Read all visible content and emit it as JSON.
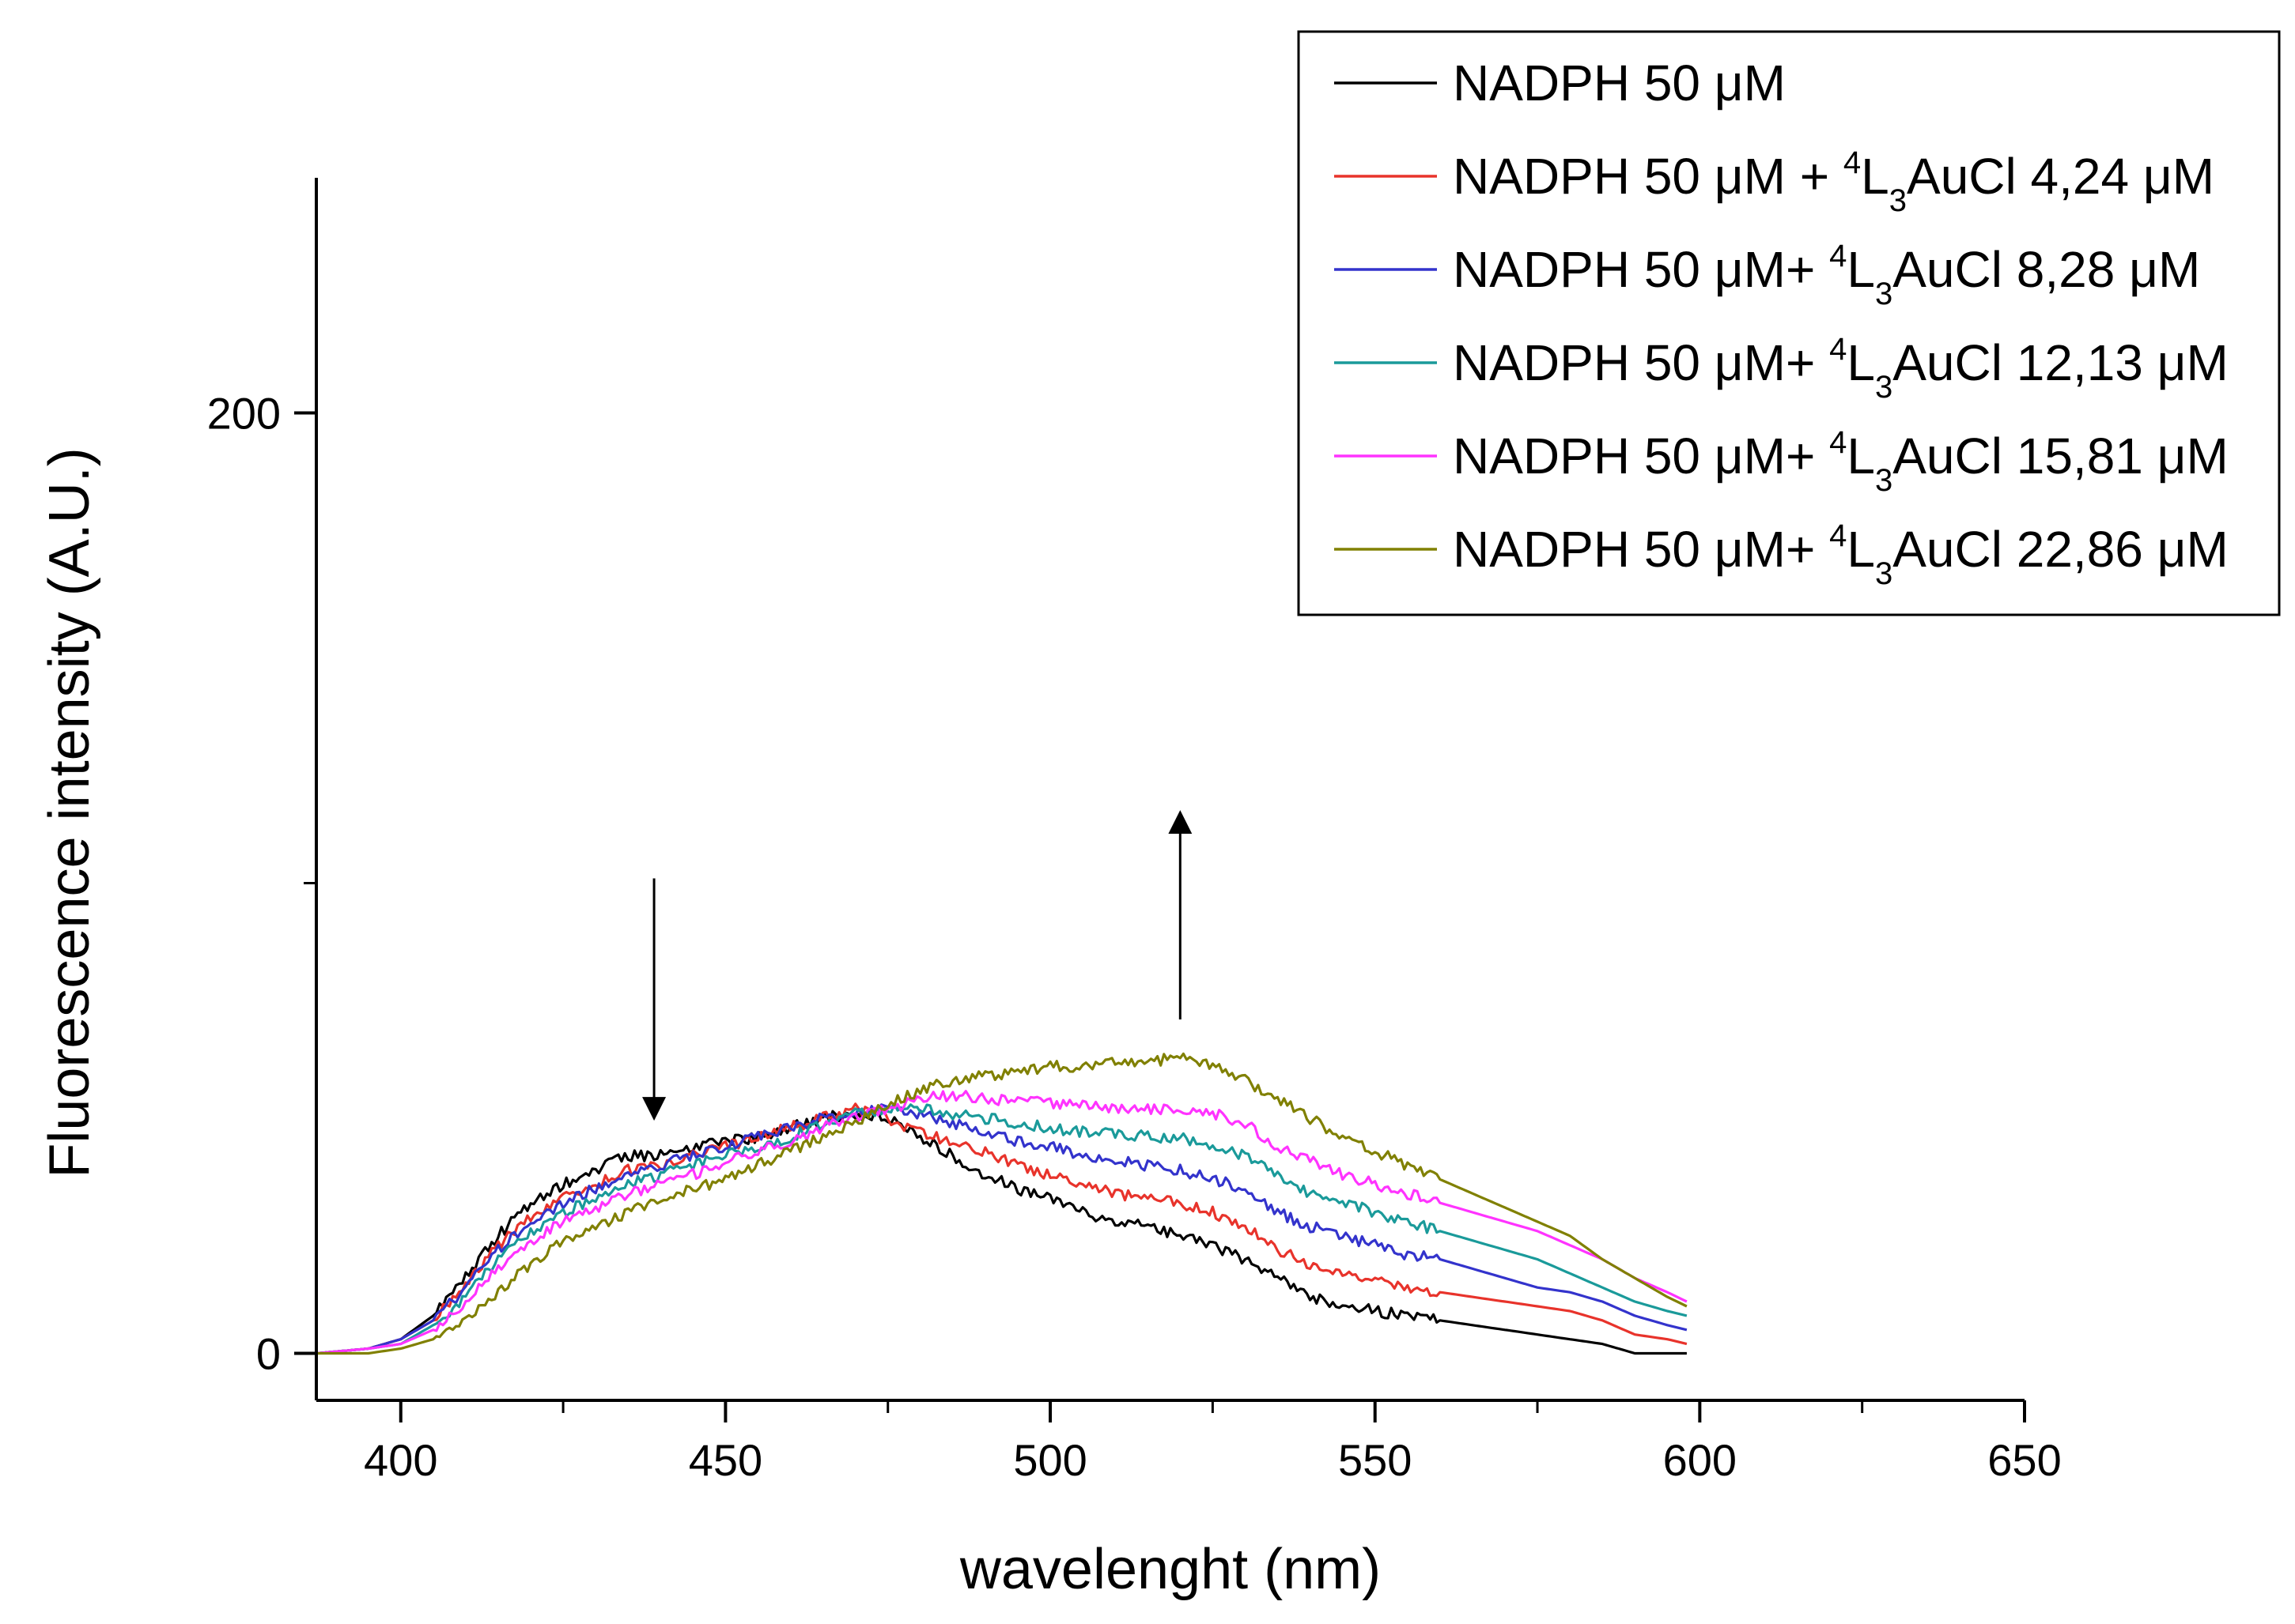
{
  "chart_data": {
    "type": "line",
    "title": "",
    "xlabel": "wavelenght (nm)",
    "ylabel": "Fluorescence intensity (A.U.)",
    "xlim": [
      387,
      650
    ],
    "ylim": [
      -10,
      250
    ],
    "x_ticks": [
      400,
      450,
      500,
      550,
      600,
      650
    ],
    "x_tick_labels": [
      "400",
      "450",
      "500",
      "550",
      "600",
      "650"
    ],
    "x_minor_ticks": [
      425,
      475,
      525,
      575,
      625
    ],
    "y_ticks": [
      0,
      200
    ],
    "y_tick_labels": [
      "0",
      "200"
    ],
    "y_minor_ticks": [
      100
    ],
    "grid": false,
    "legend_position": "top-right",
    "x": [
      387,
      395,
      400,
      405,
      410,
      415,
      420,
      425,
      430,
      435,
      440,
      445,
      450,
      455,
      460,
      465,
      470,
      475,
      480,
      485,
      490,
      495,
      500,
      505,
      510,
      515,
      520,
      525,
      530,
      535,
      540,
      545,
      550,
      555,
      560,
      565,
      570,
      575,
      580,
      585,
      590,
      595,
      598
    ],
    "series": [
      {
        "name": "NADPH 50 μM",
        "legend": {
          "pre": "NADPH 50 μM",
          "sup": "",
          "mid": "",
          "sub": "",
          "post": ""
        },
        "color": "#000000",
        "values": [
          0,
          1,
          3,
          8,
          16,
          25,
          32,
          36,
          39,
          42,
          42,
          44,
          45,
          46,
          48,
          50,
          51,
          50,
          46,
          42,
          38,
          35,
          33,
          30,
          28,
          27,
          25,
          23,
          20,
          16,
          12,
          10,
          9,
          8,
          7,
          6,
          5,
          4,
          3,
          2,
          0,
          0,
          0
        ]
      },
      {
        "name": "NADPH 50 μM + 4L3AuCl 4,24 μM",
        "legend": {
          "pre": "NADPH 50 μM + ",
          "sup": "4",
          "mid": "L",
          "sub": "3",
          "post": "AuCl 4,24 μM"
        },
        "color": "#e8332b",
        "values": [
          0,
          1,
          3,
          7,
          15,
          23,
          29,
          33,
          36,
          39,
          40,
          42,
          44,
          46,
          48,
          50,
          52,
          50,
          47,
          45,
          43,
          40,
          38,
          36,
          34,
          33,
          32,
          30,
          27,
          22,
          19,
          17,
          16,
          14,
          13,
          12,
          11,
          10,
          9,
          7,
          4,
          3,
          2
        ]
      },
      {
        "name": "NADPH 50 μM+ 4L3AuCl 8,28 μM",
        "legend": {
          "pre": "NADPH 50 μM+ ",
          "sup": "4",
          "mid": "L",
          "sub": "3",
          "post": "AuCl 8,28 μM"
        },
        "color": "#3333cc",
        "values": [
          0,
          1,
          3,
          7,
          14,
          22,
          28,
          32,
          35,
          38,
          40,
          42,
          44,
          46,
          48,
          50,
          51,
          52,
          51,
          49,
          47,
          45,
          44,
          42,
          41,
          40,
          39,
          37,
          35,
          30,
          27,
          25,
          23,
          21,
          20,
          18,
          16,
          14,
          13,
          11,
          8,
          6,
          5
        ]
      },
      {
        "name": "NADPH 50 μM+ 4L3AuCl 12,13 μM",
        "legend": {
          "pre": "NADPH 50 μM+ ",
          "sup": "4",
          "mid": "L",
          "sub": "3",
          "post": "AuCl 12,13 μM"
        },
        "color": "#1a9a9a",
        "values": [
          0,
          1,
          2,
          6,
          12,
          20,
          26,
          30,
          33,
          36,
          38,
          40,
          42,
          44,
          46,
          49,
          51,
          52,
          52,
          51,
          50,
          49,
          48,
          47,
          47,
          46,
          46,
          44,
          42,
          38,
          34,
          32,
          30,
          28,
          26,
          24,
          22,
          20,
          17,
          14,
          11,
          9,
          8
        ]
      },
      {
        "name": "NADPH 50 μM+ 4L3AuCl 15,81 μM",
        "legend": {
          "pre": "NADPH 50 μM+ ",
          "sup": "4",
          "mid": "L",
          "sub": "3",
          "post": "AuCl 15,81 μM"
        },
        "color": "#ff33ff",
        "values": [
          0,
          1,
          2,
          5,
          11,
          18,
          24,
          28,
          31,
          34,
          36,
          38,
          41,
          43,
          45,
          48,
          50,
          52,
          54,
          55,
          54,
          54,
          53,
          53,
          52,
          52,
          52,
          51,
          49,
          44,
          41,
          38,
          36,
          34,
          32,
          30,
          28,
          26,
          23,
          20,
          16,
          13,
          11
        ]
      },
      {
        "name": "NADPH 50 μM+ 4L3AuCl 22,86 μM",
        "legend": {
          "pre": "NADPH 50 μM+ ",
          "sup": "4",
          "mid": "L",
          "sub": "3",
          "post": "AuCl 22,86 μM"
        },
        "color": "#808000",
        "values": [
          0,
          0,
          1,
          3,
          7,
          13,
          19,
          24,
          27,
          30,
          33,
          35,
          37,
          40,
          43,
          46,
          49,
          53,
          56,
          58,
          59,
          60,
          61,
          61,
          62,
          62,
          63,
          61,
          58,
          54,
          50,
          46,
          43,
          40,
          37,
          34,
          31,
          28,
          25,
          20,
          16,
          12,
          10
        ]
      }
    ],
    "annotations": [
      {
        "type": "arrow",
        "direction": "down",
        "x": 439,
        "y_from": 101,
        "y_to": 52
      },
      {
        "type": "arrow",
        "direction": "up",
        "x": 520,
        "y_from": 71,
        "y_to": 113
      }
    ]
  }
}
